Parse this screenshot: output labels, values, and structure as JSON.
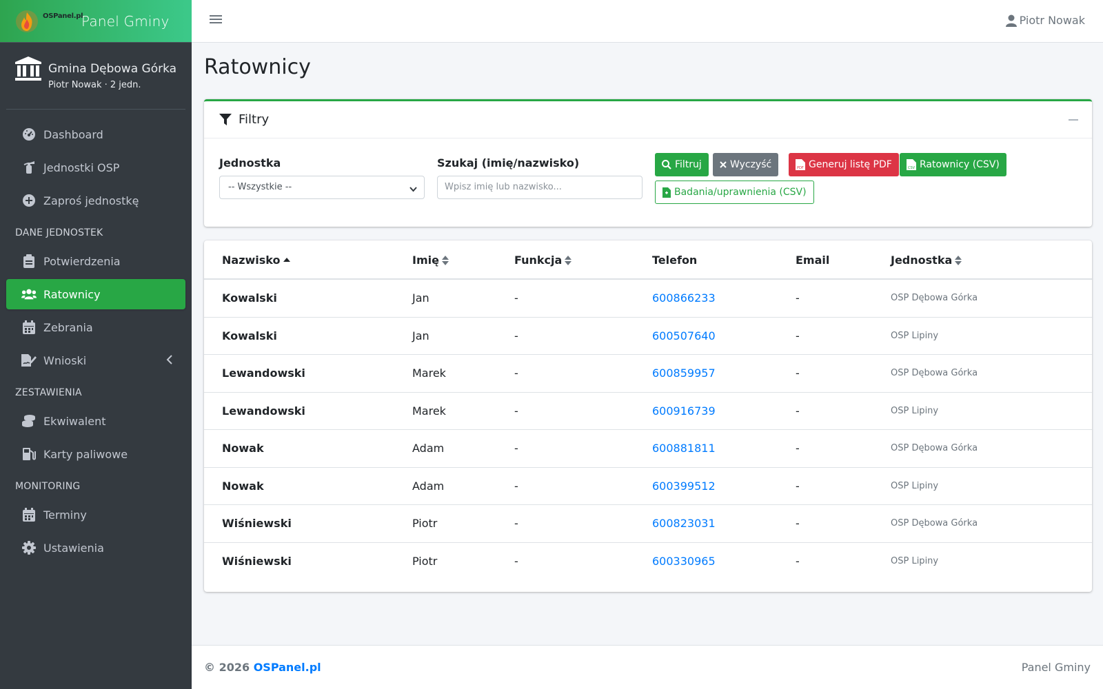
{
  "brand": {
    "small": "OSPanel.pl",
    "title": "Panel Gminy"
  },
  "user_panel": {
    "name": "Gmina Dębowa Górka",
    "sub": "Piotr Nowak · 2 jedn."
  },
  "nav": {
    "dashboard": "Dashboard",
    "jednostki": "Jednostki OSP",
    "zapros": "Zaproś jednostkę",
    "header1": "DANE JEDNOSTEK",
    "potwierdzenia": "Potwierdzenia",
    "ratownicy": "Ratownicy",
    "zebrania": "Zebrania",
    "wnioski": "Wnioski",
    "header2": "ZESTAWIENIA",
    "ekwiwalent": "Ekwiwalent",
    "karty": "Karty paliwowe",
    "header3": "MONITORING",
    "terminy": "Terminy",
    "ustawienia": "Ustawienia"
  },
  "topbar": {
    "user": "Piotr Nowak"
  },
  "page": {
    "title": "Ratownicy"
  },
  "filters": {
    "title": "Filtry",
    "jednostka_label": "Jednostka",
    "jednostka_value": "-- Wszystkie --",
    "search_label": "Szukaj (imię/nazwisko)",
    "search_placeholder": "Wpisz imię lub nazwisko...",
    "btn_filter": "Filtruj",
    "btn_clear": "Wyczyść",
    "btn_pdf": "Generuj listę PDF",
    "btn_csv": "Ratownicy (CSV)",
    "btn_badania": "Badania/uprawnienia (CSV)"
  },
  "table": {
    "headers": {
      "nazwisko": "Nazwisko",
      "imie": "Imię",
      "funkcja": "Funkcja",
      "telefon": "Telefon",
      "email": "Email",
      "jednostka": "Jednostka"
    },
    "rows": [
      {
        "nazwisko": "Kowalski",
        "imie": "Jan",
        "funkcja": "-",
        "telefon": "600866233",
        "email": "-",
        "jednostka": "OSP Dębowa Górka"
      },
      {
        "nazwisko": "Kowalski",
        "imie": "Jan",
        "funkcja": "-",
        "telefon": "600507640",
        "email": "-",
        "jednostka": "OSP Lipiny"
      },
      {
        "nazwisko": "Lewandowski",
        "imie": "Marek",
        "funkcja": "-",
        "telefon": "600859957",
        "email": "-",
        "jednostka": "OSP Dębowa Górka"
      },
      {
        "nazwisko": "Lewandowski",
        "imie": "Marek",
        "funkcja": "-",
        "telefon": "600916739",
        "email": "-",
        "jednostka": "OSP Lipiny"
      },
      {
        "nazwisko": "Nowak",
        "imie": "Adam",
        "funkcja": "-",
        "telefon": "600881811",
        "email": "-",
        "jednostka": "OSP Dębowa Górka"
      },
      {
        "nazwisko": "Nowak",
        "imie": "Adam",
        "funkcja": "-",
        "telefon": "600399512",
        "email": "-",
        "jednostka": "OSP Lipiny"
      },
      {
        "nazwisko": "Wiśniewski",
        "imie": "Piotr",
        "funkcja": "-",
        "telefon": "600823031",
        "email": "-",
        "jednostka": "OSP Dębowa Górka"
      },
      {
        "nazwisko": "Wiśniewski",
        "imie": "Piotr",
        "funkcja": "-",
        "telefon": "600330965",
        "email": "-",
        "jednostka": "OSP Lipiny"
      }
    ]
  },
  "footer": {
    "copy_prefix": "© 2026",
    "copy_link": "OSPanel.pl",
    "right": "Panel Gminy"
  },
  "colors": {
    "accent": "#28a745",
    "danger": "#dc3545",
    "link": "#007bff",
    "sidebar": "#343a40"
  }
}
